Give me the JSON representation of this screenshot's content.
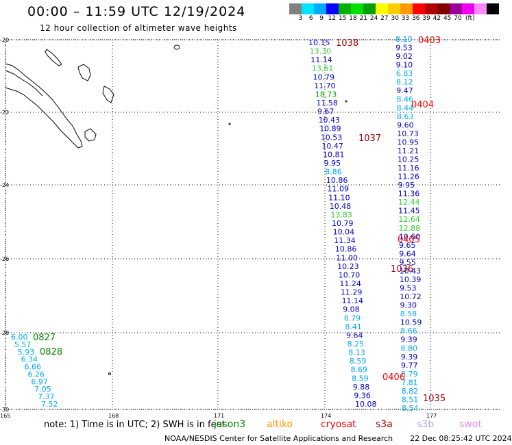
{
  "header": {
    "title": "00:00 – 11:59 UTC 12/19/2024",
    "subtitle": "12 hour collection of altimeter wave heights"
  },
  "colorbar": {
    "labels": [
      "3",
      "6",
      "9",
      "12",
      "15",
      "18",
      "21",
      "24",
      "27",
      "30",
      "33",
      "36",
      "39",
      "42",
      "45",
      "70"
    ],
    "unit": "(ft)",
    "colors": [
      "#808080",
      "#00e5ff",
      "#00aaff",
      "#0000ff",
      "#00b000",
      "#00e000",
      "#00a000",
      "#ffff00",
      "#ffcc00",
      "#ff9900",
      "#ff0000",
      "#b00000",
      "#800000",
      "#990099",
      "#ee00ee",
      "#ff88ff",
      "#000000"
    ]
  },
  "map": {
    "lon_ticks": [
      "165",
      "168",
      "171",
      "174",
      "177"
    ],
    "lat_ticks": [
      "-20",
      "-22",
      "-24",
      "-26",
      "-28",
      "-30"
    ]
  },
  "track_labels": [
    {
      "text": "0403",
      "color": "#ff0000"
    },
    {
      "text": "0404",
      "color": "#ff0000"
    },
    {
      "text": "0405",
      "color": "#ff0000"
    },
    {
      "text": "0406",
      "color": "#ff0000"
    },
    {
      "text": "1038",
      "color": "#990000"
    },
    {
      "text": "1037",
      "color": "#990000"
    },
    {
      "text": "1036",
      "color": "#990000"
    },
    {
      "text": "1035",
      "color": "#990000"
    },
    {
      "text": "0827",
      "color": "#008800"
    },
    {
      "text": "0828",
      "color": "#008800"
    }
  ],
  "observations": {
    "track_1038": [
      "10.15",
      "13.30",
      "11.14",
      "13.61",
      "10.79",
      "11.70",
      "18.73",
      "11.58",
      "9.67",
      "10.43",
      "10.89",
      "10.53",
      "10.47",
      "10.81",
      "9.95",
      "8.86",
      "10.86",
      "11.09",
      "11.10",
      "10.48",
      "13.83",
      "10.79",
      "10.04",
      "11.34",
      "10.86",
      "11.00",
      "10.23",
      "10.70",
      "11.24",
      "11.29",
      "11.14",
      "9.08",
      "8.79",
      "8.41",
      "9.64",
      "8.25",
      "8.13",
      "8.59",
      "8.69",
      "8.59",
      "9.88",
      "9.36",
      "10.08"
    ],
    "track_0403": [
      "8.10",
      "9.53",
      "9.02",
      "9.10",
      "6.83",
      "8.12",
      "9.47",
      "8.46",
      "8.44",
      "8.63",
      "9.60",
      "10.73",
      "10.95",
      "11.21",
      "10.25",
      "11.16",
      "11.26",
      "9.95",
      "11.36",
      "12.44",
      "11.45",
      "12.64",
      "12.88",
      "10.60",
      "9.65",
      "9.64",
      "9.55",
      "10.43",
      "10.39",
      "9.53",
      "10.72",
      "9.30",
      "8.58",
      "10.59",
      "8.66",
      "9.39",
      "8.80",
      "9.39",
      "9.77",
      "8.79",
      "7.81",
      "8.82",
      "8.51",
      "8.54"
    ],
    "track_0827": [
      "6.00",
      "5.57",
      "5.93",
      "6.34",
      "6.66",
      "6.26",
      "6.97",
      "7.05",
      "7.37",
      "7.52"
    ]
  },
  "footer": {
    "note_prefix": "note:  1) Time is in UTC;  2) SWH is in feet",
    "missions": [
      {
        "name": "jason3",
        "color": "#008800"
      },
      {
        "name": "altiko",
        "color": "#ff9900"
      },
      {
        "name": "cryosat",
        "color": "#ff0000"
      },
      {
        "name": "s3a",
        "color": "#990000"
      },
      {
        "name": "s3b",
        "color": "#aaaaee"
      },
      {
        "name": "swot",
        "color": "#ee88ee"
      }
    ],
    "credit": "NOAA/NESDIS Center for Satellite Applications and Research",
    "generated": "22 Dec 08:25:42 UTC 2024"
  }
}
